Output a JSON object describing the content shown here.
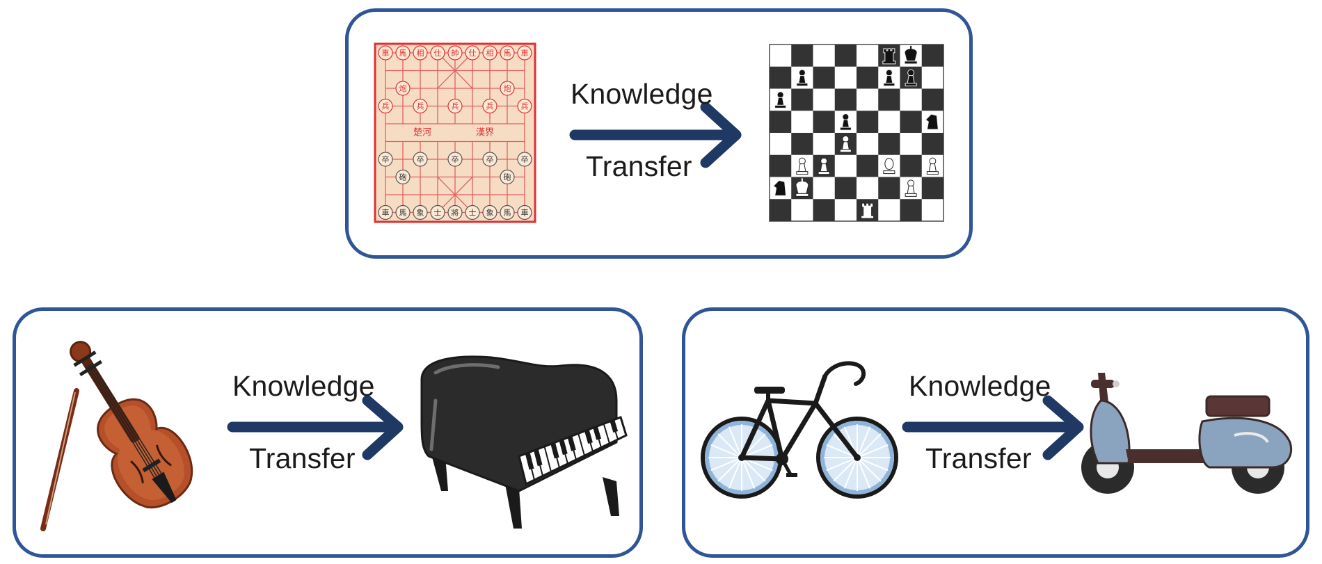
{
  "panels": [
    {
      "source": "chinese-chess-board",
      "target": "western-chess-board",
      "label_top": "Knowledge",
      "label_bottom": "Transfer",
      "xiangqi_glyphs": {
        "top_row": [
          "車",
          "馬",
          "相",
          "仕",
          "帥",
          "仕",
          "相",
          "馬",
          "車"
        ],
        "bottom_row": [
          "車",
          "馬",
          "象",
          "士",
          "將",
          "士",
          "象",
          "馬",
          "車"
        ],
        "cannon_red": "炮",
        "cannon_black": "砲",
        "soldier_red": "兵",
        "soldier_black": "卒",
        "river_left": "楚河",
        "river_right": "漢界"
      }
    },
    {
      "source": "violin",
      "target": "grand-piano",
      "label_top": "Knowledge",
      "label_bottom": "Transfer"
    },
    {
      "source": "bicycle",
      "target": "scooter",
      "label_top": "Knowledge",
      "label_bottom": "Transfer"
    }
  ],
  "colors": {
    "panel_border": "#2f5597",
    "arrow": "#1f3864",
    "board_red": "#e03030",
    "board_bg": "#f7dcc4",
    "chess_dark": "#333333",
    "violin": "#b5502a",
    "piano": "#2b2b2b",
    "bike_wheel": "#8fb3d9",
    "scooter_body": "#8aa3bf"
  }
}
